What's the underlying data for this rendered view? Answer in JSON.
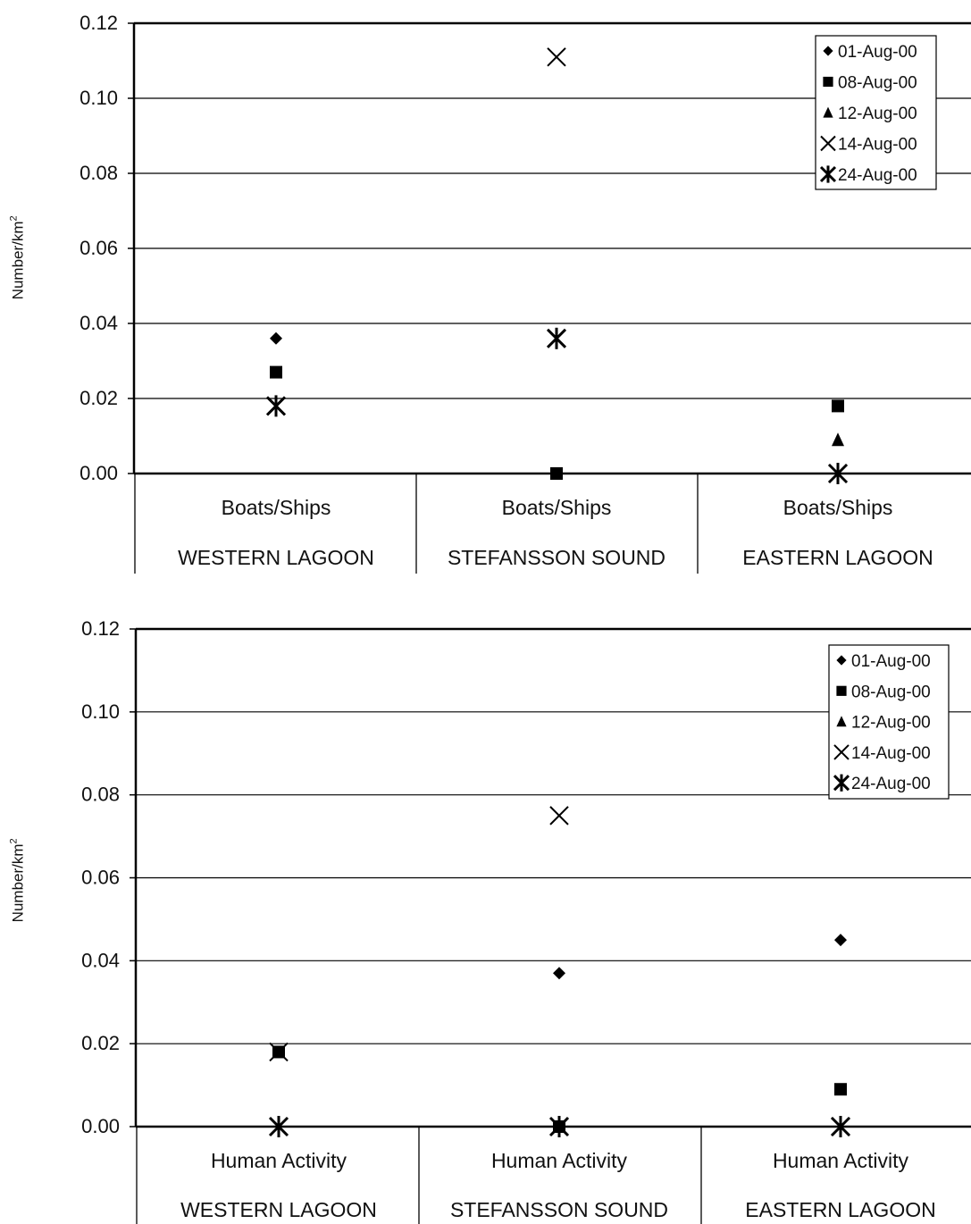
{
  "chart_data": [
    {
      "type": "scatter",
      "ylabel_prefix": "Number/km",
      "ylabel_sup": "2",
      "ylim": [
        0,
        0.12
      ],
      "yticks": [
        "0.00",
        "0.02",
        "0.04",
        "0.06",
        "0.08",
        "0.10",
        "0.12"
      ],
      "grid": true,
      "legend_position": "top-right",
      "categories": [
        {
          "label": "Boats/Ships",
          "group": "WESTERN LAGOON"
        },
        {
          "label": "Boats/Ships",
          "group": "STEFANSSON SOUND"
        },
        {
          "label": "Boats/Ships",
          "group": "EASTERN LAGOON"
        }
      ],
      "series": [
        {
          "name": "01-Aug-00",
          "marker": "diamond",
          "values": [
            0.036,
            null,
            null
          ]
        },
        {
          "name": "08-Aug-00",
          "marker": "square",
          "values": [
            0.027,
            0.0,
            0.018
          ]
        },
        {
          "name": "12-Aug-00",
          "marker": "triangle",
          "values": [
            null,
            null,
            0.009
          ]
        },
        {
          "name": "14-Aug-00",
          "marker": "x",
          "values": [
            0.018,
            0.111,
            0.0
          ]
        },
        {
          "name": "24-Aug-00",
          "marker": "asterisk",
          "values": [
            0.018,
            0.036,
            0.0
          ]
        }
      ]
    },
    {
      "type": "scatter",
      "ylabel_prefix": "Number/km",
      "ylabel_sup": "2",
      "ylim": [
        0,
        0.12
      ],
      "yticks": [
        "0.00",
        "0.02",
        "0.04",
        "0.06",
        "0.08",
        "0.10",
        "0.12"
      ],
      "grid": true,
      "legend_position": "top-right",
      "categories": [
        {
          "label": "Human Activity",
          "group": "WESTERN LAGOON"
        },
        {
          "label": "Human Activity",
          "group": "STEFANSSON SOUND"
        },
        {
          "label": "Human Activity",
          "group": "EASTERN LAGOON"
        }
      ],
      "series": [
        {
          "name": "01-Aug-00",
          "marker": "diamond",
          "values": [
            null,
            0.037,
            0.045
          ]
        },
        {
          "name": "08-Aug-00",
          "marker": "square",
          "values": [
            0.018,
            0.0,
            0.009
          ]
        },
        {
          "name": "12-Aug-00",
          "marker": "triangle",
          "values": [
            null,
            null,
            null
          ]
        },
        {
          "name": "14-Aug-00",
          "marker": "x",
          "values": [
            0.018,
            0.075,
            0.0
          ]
        },
        {
          "name": "24-Aug-00",
          "marker": "asterisk",
          "values": [
            0.0,
            0.0,
            0.0
          ]
        }
      ]
    }
  ]
}
